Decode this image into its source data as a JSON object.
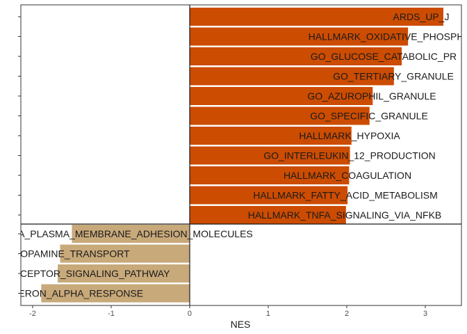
{
  "chart_data": {
    "type": "bar",
    "orientation": "horizontal",
    "xlabel": "NES",
    "ylabel": "",
    "xlim": [
      -2.15,
      3.46
    ],
    "xticks": [
      -2,
      -1,
      0,
      1,
      2,
      3
    ],
    "grid": false,
    "legend": "none",
    "colors": {
      "positive": "#CC4C02",
      "negative": "#C8A97A"
    },
    "series": [
      {
        "group": "positive",
        "categories": [
          "ARDS_UP_J",
          "HALLMARK_OXIDATIVE_PHOSPHO",
          "GO_GLUCOSE_CATABOLIC_PR",
          "GO_TERTIARY_GRANULE",
          "GO_AZUROPHIL_GRANULE",
          "GO_SPECIFIC_GRANULE",
          "HALLMARK_HYPOXIA",
          "GO_INTERLEUKIN_12_PRODUCTION",
          "HALLMARK_COAGULATION",
          "HALLMARK_FATTY_ACID_METABOLISM",
          "HALLMARK_TNFA_SIGNALING_VIA_NFKB"
        ],
        "values": [
          3.23,
          2.78,
          2.7,
          2.6,
          2.33,
          2.29,
          2.06,
          2.04,
          2.03,
          2.01,
          1.99
        ]
      },
      {
        "group": "negative",
        "categories": [
          "IA_PLASMA_MEMBRANE_ADHESION_MOLECULES",
          "OPAMINE_TRANSPORT",
          "ECEPTOR_SIGNALING_PATHWAY",
          "FERON_ALPHA_RESPONSE"
        ],
        "values": [
          -1.5,
          -1.65,
          -1.68,
          -1.89
        ]
      }
    ]
  }
}
